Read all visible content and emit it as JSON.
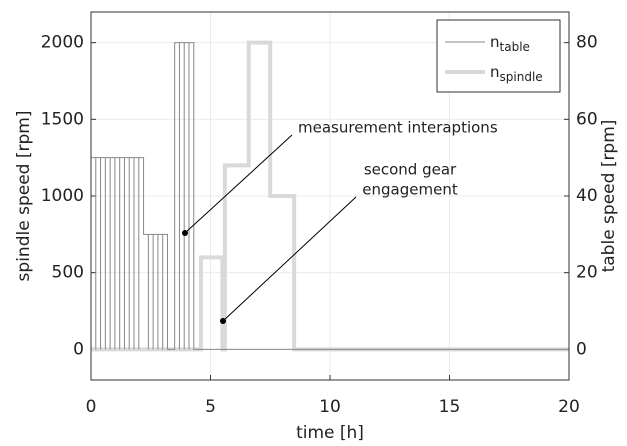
{
  "chart_data": {
    "type": "line",
    "xlabel": "time [h]",
    "ylabel": "spindle speed [rpm]",
    "y2label": "table speed [rpm]",
    "xlim": [
      0,
      20
    ],
    "xticks": [
      0,
      5,
      10,
      15,
      20
    ],
    "ylim": [
      -200,
      2200
    ],
    "yticks": [
      0,
      500,
      1000,
      1500,
      2000
    ],
    "y2lim": [
      -8,
      88
    ],
    "y2ticks": [
      0,
      20,
      40,
      60,
      80
    ],
    "grid": true,
    "legend": "upper right",
    "series": [
      {
        "name": "n",
        "name_sub": "table",
        "color": "#888888",
        "width": 1,
        "axis": "y2",
        "x": [
          0,
          0,
          0.2,
          0.2,
          0.2,
          0.4,
          0.4,
          0.4,
          0.6,
          0.6,
          0.6,
          0.8,
          0.8,
          0.8,
          1.0,
          1.0,
          1.0,
          1.2,
          1.2,
          1.2,
          1.4,
          1.4,
          1.4,
          1.6,
          1.6,
          1.6,
          1.8,
          1.8,
          1.8,
          2.0,
          2.0,
          2.0,
          2.2,
          2.2,
          2.4,
          2.4,
          2.4,
          2.6,
          2.6,
          2.6,
          2.8,
          2.8,
          2.8,
          3.0,
          3.0,
          3.0,
          3.2,
          3.2,
          3.5,
          3.5,
          3.7,
          3.7,
          3.7,
          3.9,
          3.9,
          3.9,
          4.1,
          4.1,
          4.1,
          4.3,
          4.3,
          20
        ],
        "values": [
          0,
          50,
          50,
          0,
          50,
          50,
          0,
          50,
          50,
          0,
          50,
          50,
          0,
          50,
          50,
          0,
          50,
          50,
          0,
          50,
          50,
          0,
          50,
          50,
          0,
          50,
          50,
          0,
          50,
          50,
          0,
          50,
          50,
          30,
          30,
          0,
          30,
          30,
          0,
          30,
          30,
          0,
          30,
          30,
          0,
          30,
          30,
          0,
          0,
          80,
          80,
          0,
          80,
          80,
          0,
          80,
          80,
          0,
          80,
          80,
          0,
          0
        ]
      },
      {
        "name": "n",
        "name_sub": "spindle",
        "color": "#d9d9d9",
        "width": 4,
        "axis": "y",
        "x": [
          0,
          4.6,
          4.6,
          5.5,
          5.5,
          5.6,
          5.6,
          6.6,
          6.6,
          7.5,
          7.5,
          8.5,
          8.5,
          20
        ],
        "values": [
          0,
          0,
          600,
          600,
          0,
          0,
          1200,
          1200,
          2000,
          2000,
          1000,
          1000,
          0,
          0
        ]
      }
    ],
    "annotations": [
      {
        "lines": [
          "measurement interaptions"
        ]
      },
      {
        "lines": [
          "second gear",
          "engagement"
        ]
      }
    ]
  }
}
